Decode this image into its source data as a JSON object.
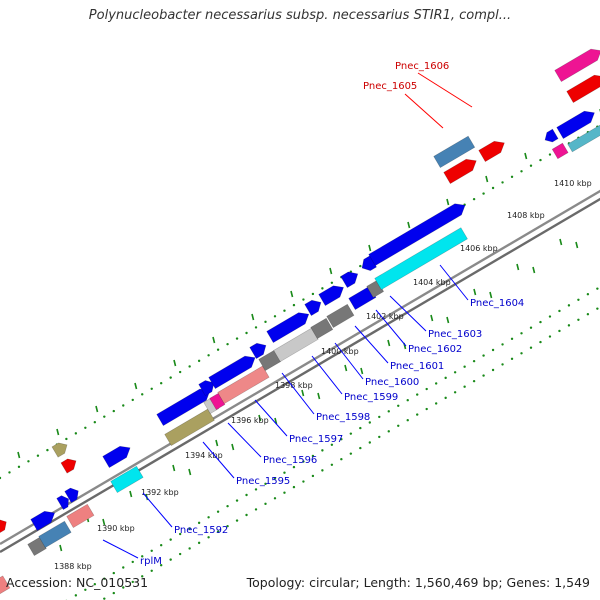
{
  "title": "Polynucleobacter necessarius subsp. necessarius STIR1, compl...",
  "accession": "Accession: NC_010531",
  "summary": "Topology: circular; Length: 1,560,469 bp; Genes: 1,549",
  "colors": {
    "backbone": "#808080",
    "tick": "#1a8a1a",
    "label_blue": "#0000cc",
    "label_red": "#cc0000",
    "leader_blue": "#0000ff",
    "leader_red": "#ff0000"
  },
  "scale_labels": [
    "1388 kbp",
    "1390 kbp",
    "1392 kbp",
    "1394 kbp",
    "1396 kbp",
    "1398 kbp",
    "1400 kbp",
    "1402 kbp",
    "1404 kbp",
    "1406 kbp",
    "1408 kbp",
    "1410 kbp"
  ],
  "gene_labels": [
    {
      "text": "Pnec_1606",
      "color": "red"
    },
    {
      "text": "Pnec_1605",
      "color": "red"
    },
    {
      "text": "Pnec_1604",
      "color": "blue"
    },
    {
      "text": "Pnec_1603",
      "color": "blue"
    },
    {
      "text": "Pnec_1602",
      "color": "blue"
    },
    {
      "text": "Pnec_1601",
      "color": "blue"
    },
    {
      "text": "Pnec_1600",
      "color": "blue"
    },
    {
      "text": "Pnec_1599",
      "color": "blue"
    },
    {
      "text": "Pnec_1598",
      "color": "blue"
    },
    {
      "text": "Pnec_1597",
      "color": "blue"
    },
    {
      "text": "Pnec_1596",
      "color": "blue"
    },
    {
      "text": "Pnec_1595",
      "color": "blue"
    },
    {
      "text": "Pnec_1592",
      "color": "blue"
    },
    {
      "text": "rplM",
      "color": "blue"
    }
  ],
  "feature_colors": {
    "cds": "#0000ee",
    "cyan": "#00e5ee",
    "grey": "#777777",
    "light_grey": "#c8c8c8",
    "pink": "#ee8888",
    "olive": "#aaa060",
    "steel": "#4682b4",
    "red": "#ee0000",
    "magenta": "#ee1493",
    "salmon": "#ee8080"
  }
}
